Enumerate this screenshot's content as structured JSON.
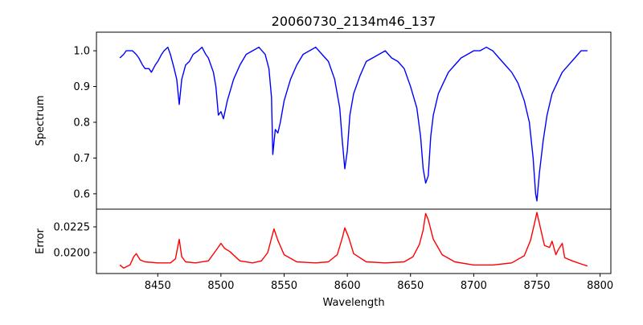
{
  "chart_data": [
    {
      "type": "line",
      "title": "20060730_2134m46_137",
      "xlabel": "",
      "ylabel": "Spectrum",
      "xlim": [
        8401.5,
        8808.5
      ],
      "ylim": [
        0.557,
        1.052
      ],
      "yticks": [
        0.6,
        0.7,
        0.8,
        0.9,
        1.0
      ],
      "ytick_labels": [
        "0.6",
        "0.7",
        "0.8",
        "0.9",
        "1.0"
      ],
      "grid": false,
      "series": [
        {
          "name": "Spectrum",
          "color": "#0000ff",
          "x": [
            8420,
            8423,
            8425,
            8428,
            8430,
            8433,
            8435,
            8438,
            8440,
            8443,
            8445,
            8448,
            8450,
            8453,
            8455,
            8458,
            8460,
            8463,
            8465,
            8467,
            8469,
            8472,
            8475,
            8478,
            8482,
            8485,
            8488,
            8490,
            8494,
            8496,
            8498,
            8500,
            8502,
            8505,
            8510,
            8515,
            8520,
            8525,
            8530,
            8535,
            8538,
            8540,
            8541,
            8543,
            8545,
            8547,
            8550,
            8555,
            8560,
            8565,
            8570,
            8575,
            8580,
            8585,
            8590,
            8594,
            8596,
            8598,
            8600,
            8602,
            8605,
            8610,
            8615,
            8620,
            8625,
            8630,
            8635,
            8640,
            8645,
            8650,
            8655,
            8658,
            8660,
            8662,
            8664,
            8666,
            8668,
            8672,
            8676,
            8680,
            8685,
            8690,
            8695,
            8700,
            8705,
            8710,
            8715,
            8720,
            8725,
            8730,
            8735,
            8740,
            8744,
            8747,
            8749,
            8750,
            8752,
            8755,
            8758,
            8762,
            8766,
            8770,
            8775,
            8780,
            8785,
            8790
          ],
          "y": [
            0.98,
            0.99,
            1.0,
            1.0,
            1.0,
            0.99,
            0.98,
            0.96,
            0.95,
            0.95,
            0.94,
            0.96,
            0.97,
            0.99,
            1.0,
            1.01,
            0.99,
            0.95,
            0.92,
            0.85,
            0.92,
            0.96,
            0.97,
            0.99,
            1.0,
            1.01,
            0.99,
            0.98,
            0.94,
            0.9,
            0.82,
            0.83,
            0.81,
            0.86,
            0.92,
            0.96,
            0.99,
            1.0,
            1.01,
            0.99,
            0.95,
            0.87,
            0.71,
            0.78,
            0.77,
            0.8,
            0.86,
            0.92,
            0.96,
            0.99,
            1.0,
            1.01,
            0.99,
            0.97,
            0.92,
            0.84,
            0.75,
            0.67,
            0.72,
            0.82,
            0.88,
            0.93,
            0.97,
            0.98,
            0.99,
            1.0,
            0.98,
            0.97,
            0.95,
            0.9,
            0.84,
            0.76,
            0.67,
            0.63,
            0.65,
            0.76,
            0.82,
            0.88,
            0.91,
            0.94,
            0.96,
            0.98,
            0.99,
            1.0,
            1.0,
            1.01,
            1.0,
            0.98,
            0.96,
            0.94,
            0.91,
            0.86,
            0.8,
            0.7,
            0.6,
            0.58,
            0.66,
            0.75,
            0.82,
            0.88,
            0.91,
            0.94,
            0.96,
            0.98,
            1.0,
            1.0
          ]
        }
      ]
    },
    {
      "type": "line",
      "title": "",
      "xlabel": "Wavelength",
      "ylabel": "Error",
      "xlim": [
        8401.5,
        8808.5
      ],
      "ylim": [
        0.01797,
        0.02422
      ],
      "yticks": [
        0.02,
        0.0225
      ],
      "ytick_labels": [
        "0.0200",
        "0.0225"
      ],
      "xticks": [
        8450,
        8500,
        8550,
        8600,
        8650,
        8700,
        8750,
        8800
      ],
      "xtick_labels": [
        "8450",
        "8500",
        "8550",
        "8600",
        "8650",
        "8700",
        "8750",
        "8800"
      ],
      "grid": false,
      "series": [
        {
          "name": "Error",
          "color": "#ff0000",
          "x": [
            8420,
            8423,
            8428,
            8431,
            8433,
            8436,
            8440,
            8450,
            8460,
            8464,
            8467,
            8469,
            8472,
            8480,
            8490,
            8496,
            8500,
            8503,
            8507,
            8515,
            8525,
            8532,
            8537,
            8540,
            8542,
            8545,
            8550,
            8560,
            8575,
            8585,
            8592,
            8596,
            8598,
            8601,
            8605,
            8615,
            8630,
            8645,
            8652,
            8657,
            8660,
            8662,
            8664,
            8668,
            8675,
            8685,
            8700,
            8715,
            8730,
            8740,
            8745,
            8748,
            8750,
            8752,
            8756,
            8760,
            8762,
            8765,
            8767,
            8770,
            8772,
            8778,
            8785,
            8790
          ],
          "y": [
            0.0188,
            0.0185,
            0.0188,
            0.0196,
            0.0199,
            0.0193,
            0.0191,
            0.019,
            0.019,
            0.0194,
            0.0213,
            0.0196,
            0.0191,
            0.019,
            0.0192,
            0.0202,
            0.0209,
            0.0204,
            0.0201,
            0.0192,
            0.019,
            0.0192,
            0.02,
            0.0214,
            0.0223,
            0.0212,
            0.0198,
            0.0191,
            0.019,
            0.0191,
            0.0198,
            0.0214,
            0.0224,
            0.0215,
            0.0199,
            0.0191,
            0.019,
            0.0191,
            0.0196,
            0.0208,
            0.0222,
            0.0238,
            0.0232,
            0.0213,
            0.0198,
            0.0191,
            0.0188,
            0.0188,
            0.019,
            0.0197,
            0.0212,
            0.0228,
            0.0239,
            0.0228,
            0.0207,
            0.0205,
            0.0211,
            0.0198,
            0.0203,
            0.0209,
            0.0195,
            0.0192,
            0.0189,
            0.0187
          ]
        }
      ]
    }
  ]
}
